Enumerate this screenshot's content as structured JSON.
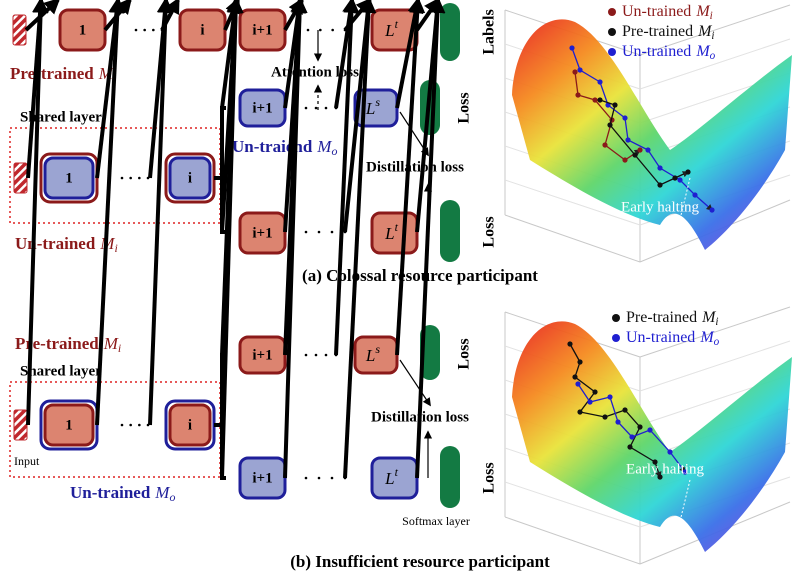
{
  "panel_a": {
    "caption": "(a) Colossal resource participant",
    "teacher_label": {
      "text": "Pre-trained",
      "math": "M",
      "sub": "i"
    },
    "teacher_row": {
      "boxes": [
        "1",
        "i",
        "i+1",
        {
          "main": "L",
          "sup": "t"
        }
      ],
      "output": "Labels"
    },
    "attention_loss": "Attention loss",
    "student_branch": {
      "boxes": [
        "i+1",
        {
          "main": "L",
          "sup": "s"
        }
      ],
      "output": "Loss",
      "label": {
        "text": "Un-traiend",
        "math": "M",
        "sub": "o"
      }
    },
    "shared_label": "Shared layer",
    "shared_boxes": [
      "1",
      "i"
    ],
    "distillation_loss": "Distillation loss",
    "main_branch": {
      "boxes": [
        "i+1",
        {
          "main": "L",
          "sup": "t"
        }
      ],
      "output": "Loss"
    },
    "model_label": {
      "text": "Un-trained",
      "math": "M",
      "sub": "i"
    },
    "legend": [
      {
        "text": "Un-trained",
        "math": "M",
        "sub": "i",
        "color": "#8b1a1a"
      },
      {
        "text": "Pre-trained",
        "math": "M",
        "sub": "i",
        "color": "#111111"
      },
      {
        "text": "Un-trained",
        "math": "M",
        "sub": "o",
        "color": "#1f1fd0"
      }
    ],
    "plot_annotation": "Early halting"
  },
  "panel_b": {
    "caption": "(b) Insufficient resource participant",
    "teacher_label": {
      "text": "Pre-trained",
      "math": "M",
      "sub": "i"
    },
    "shared_label": "Shared layer",
    "shared_boxes": [
      "1",
      "i"
    ],
    "input_label": "Input",
    "top_branch": {
      "boxes": [
        "i+1",
        {
          "main": "L",
          "sup": "s"
        }
      ],
      "output": "Loss"
    },
    "distillation_loss": "Distillation loss",
    "bottom_branch": {
      "boxes": [
        "i+1",
        {
          "main": "L",
          "sup": "t"
        }
      ],
      "output": "Loss"
    },
    "softmax_label": "Softmax layer",
    "model_label": {
      "text": "Un-trained",
      "math": "M",
      "sub": "o"
    },
    "legend": [
      {
        "text": "Pre-trained",
        "math": "M",
        "sub": "i",
        "color": "#111111"
      },
      {
        "text": "Un-trained",
        "math": "M",
        "sub": "o",
        "color": "#1f1fd0"
      }
    ],
    "plot_annotation": "Early halting"
  }
}
